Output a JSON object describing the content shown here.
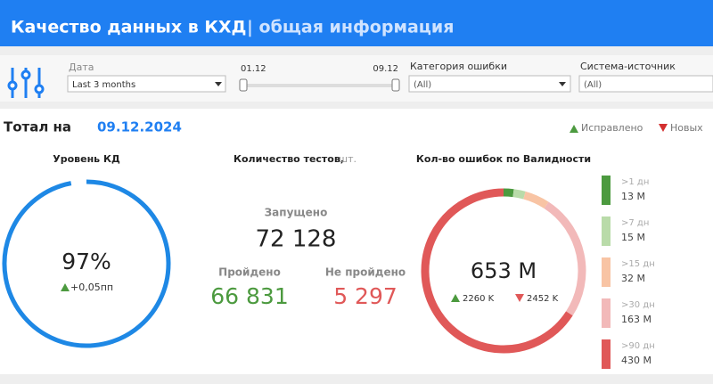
{
  "header": {
    "title": "Качество данных в КХД",
    "subtitle": "| общая информация"
  },
  "filters": {
    "date": {
      "label": "Дата",
      "value": "Last 3 months"
    },
    "range": {
      "start": "01.12",
      "end": "09.12"
    },
    "category": {
      "label": "Категория ошибки",
      "value": "(All)"
    },
    "source": {
      "label": "Система-источник",
      "value": "(All)"
    }
  },
  "total": {
    "label": "Тотал на",
    "date": "09.12.2024"
  },
  "legend": {
    "fixed": "Исправлено",
    "new": "Новых"
  },
  "kd_level": {
    "title": "Уровень КД",
    "value": 97,
    "label": "97%",
    "scale": [
      0,
      100
    ],
    "delta": "+0,05пп",
    "color": "#1e88e5"
  },
  "tests": {
    "title": "Количество тестов,",
    "unit": "шт.",
    "launched_label": "Запущено",
    "launched": "72 128",
    "passed_label": "Пройдено",
    "passed": "66 831",
    "failed_label": "Не пройдено",
    "failed": "5 297"
  },
  "errors": {
    "title": "Кол-во ошибок по Валидности",
    "total": "653 М",
    "fixed": "2260 K",
    "new": "2452 K",
    "segments": [
      {
        "name": ">1 дн",
        "value": 13,
        "label": "13 М",
        "color": "#4c9a3f"
      },
      {
        "name": ">7 дн",
        "value": 15,
        "label": "15 М",
        "color": "#b9dba9"
      },
      {
        "name": ">15 дн",
        "value": 32,
        "label": "32 М",
        "color": "#f8c4a4"
      },
      {
        "name": ">30 дн",
        "value": 163,
        "label": "163 М",
        "color": "#f2b9b9"
      },
      {
        "name": ">90 дн",
        "value": 430,
        "label": "430 М",
        "color": "#e05858"
      }
    ]
  }
}
